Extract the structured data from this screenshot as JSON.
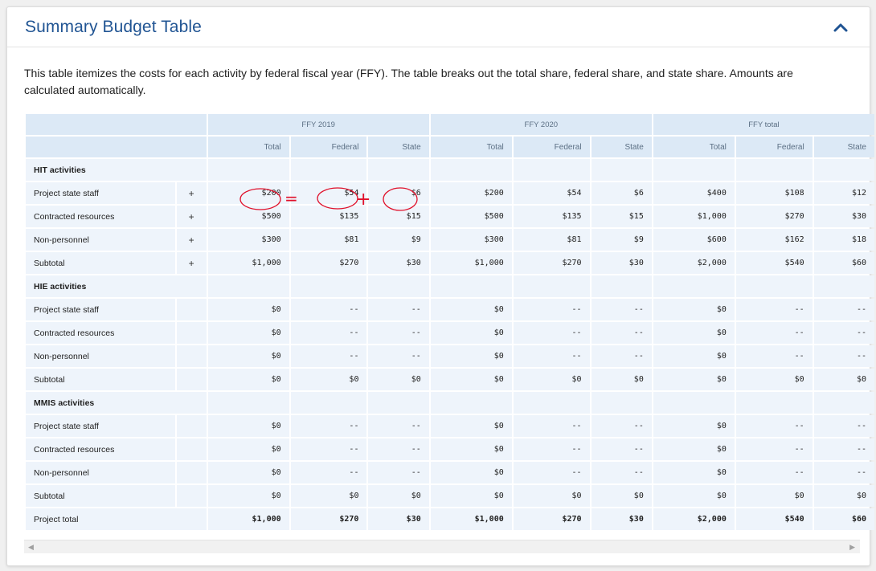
{
  "header": {
    "title": "Summary Budget Table"
  },
  "description": "This table itemizes the costs for each activity by federal fiscal year (FFY). The table breaks out the total share, federal share, and state share. Amounts are calculated automatically.",
  "table": {
    "groups": [
      "FFY 2019",
      "FFY 2020",
      "FFY total"
    ],
    "subcolumns": [
      "Total",
      "Federal",
      "State"
    ],
    "sections": [
      {
        "title": "HIT activities",
        "rows": [
          {
            "label": "Project state staff",
            "expand": "+",
            "values": [
              "$200",
              "$54",
              "$6",
              "$200",
              "$54",
              "$6",
              "$400",
              "$108",
              "$12"
            ]
          },
          {
            "label": "Contracted resources",
            "expand": "+",
            "values": [
              "$500",
              "$135",
              "$15",
              "$500",
              "$135",
              "$15",
              "$1,000",
              "$270",
              "$30"
            ]
          },
          {
            "label": "Non-personnel",
            "expand": "+",
            "values": [
              "$300",
              "$81",
              "$9",
              "$300",
              "$81",
              "$9",
              "$600",
              "$162",
              "$18"
            ]
          },
          {
            "label": "Subtotal",
            "expand": "+",
            "values": [
              "$1,000",
              "$270",
              "$30",
              "$1,000",
              "$270",
              "$30",
              "$2,000",
              "$540",
              "$60"
            ]
          }
        ]
      },
      {
        "title": "HIE activities",
        "rows": [
          {
            "label": "Project state staff",
            "expand": "",
            "values": [
              "$0",
              "--",
              "--",
              "$0",
              "--",
              "--",
              "$0",
              "--",
              "--"
            ]
          },
          {
            "label": "Contracted resources",
            "expand": "",
            "values": [
              "$0",
              "--",
              "--",
              "$0",
              "--",
              "--",
              "$0",
              "--",
              "--"
            ]
          },
          {
            "label": "Non-personnel",
            "expand": "",
            "values": [
              "$0",
              "--",
              "--",
              "$0",
              "--",
              "--",
              "$0",
              "--",
              "--"
            ]
          },
          {
            "label": "Subtotal",
            "expand": "",
            "values": [
              "$0",
              "$0",
              "$0",
              "$0",
              "$0",
              "$0",
              "$0",
              "$0",
              "$0"
            ]
          }
        ]
      },
      {
        "title": "MMIS activities",
        "rows": [
          {
            "label": "Project state staff",
            "expand": "",
            "values": [
              "$0",
              "--",
              "--",
              "$0",
              "--",
              "--",
              "$0",
              "--",
              "--"
            ]
          },
          {
            "label": "Contracted resources",
            "expand": "",
            "values": [
              "$0",
              "--",
              "--",
              "$0",
              "--",
              "--",
              "$0",
              "--",
              "--"
            ]
          },
          {
            "label": "Non-personnel",
            "expand": "",
            "values": [
              "$0",
              "--",
              "--",
              "$0",
              "--",
              "--",
              "$0",
              "--",
              "--"
            ]
          },
          {
            "label": "Subtotal",
            "expand": "",
            "values": [
              "$0",
              "$0",
              "$0",
              "$0",
              "$0",
              "$0",
              "$0",
              "$0",
              "$0"
            ]
          }
        ]
      }
    ],
    "total": {
      "label": "Project total",
      "values": [
        "$1,000",
        "$270",
        "$30",
        "$1,000",
        "$270",
        "$30",
        "$2,000",
        "$540",
        "$60"
      ]
    }
  },
  "annotation": {
    "equals": "=",
    "plus": "+"
  },
  "colors": {
    "title": "#205493",
    "header_bg": "#dce9f6",
    "cell_bg": "#eef4fb",
    "annotation": "#e0102a"
  },
  "icons": {
    "collapse": "chevron-up-icon",
    "scroll_left": "arrow-left-icon",
    "scroll_right": "arrow-right-icon"
  }
}
